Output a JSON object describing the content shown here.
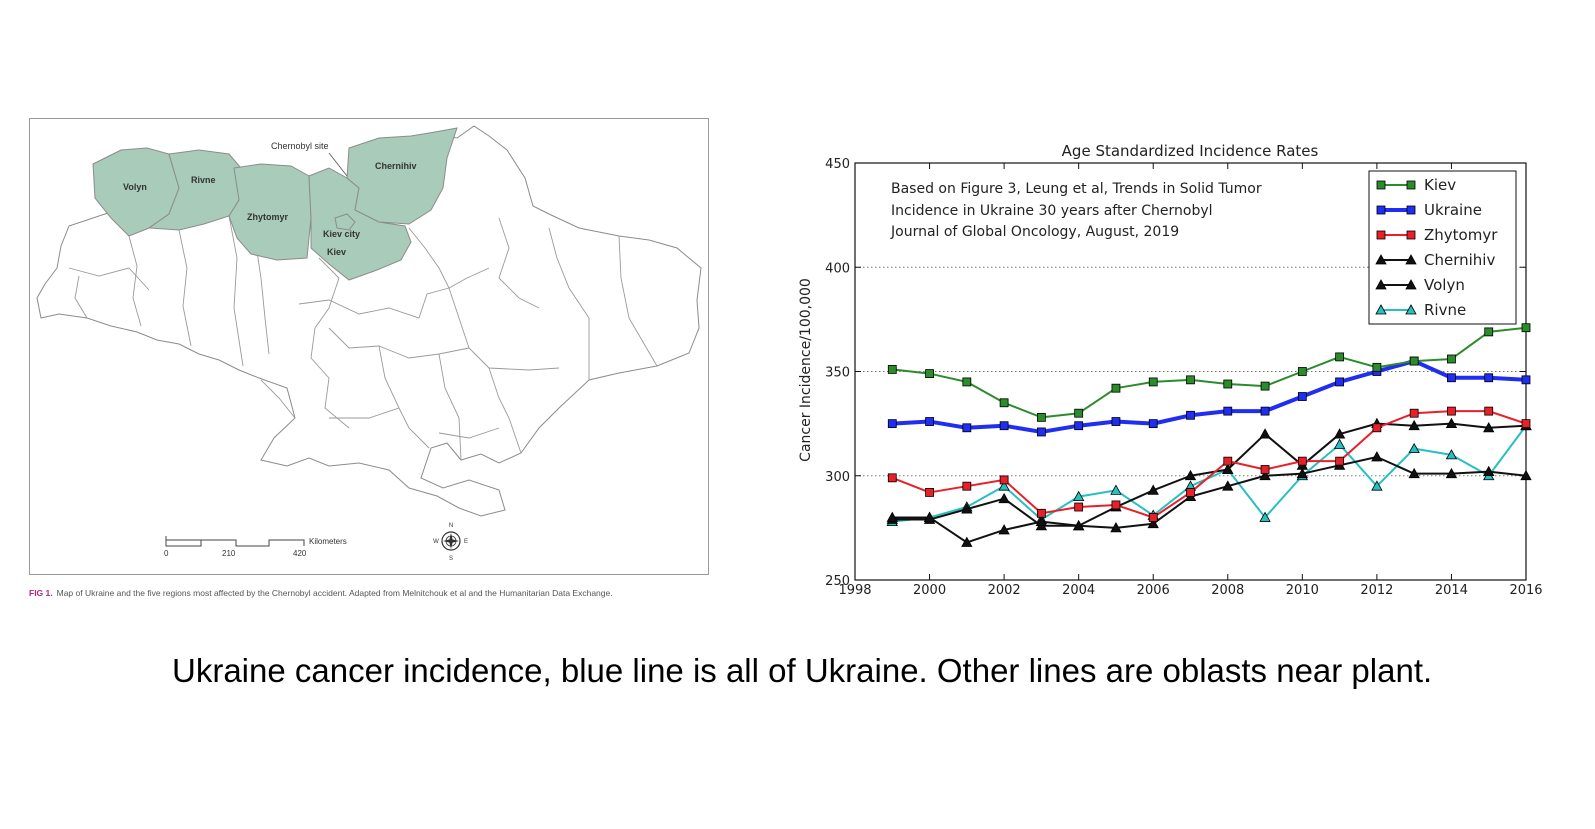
{
  "map": {
    "regions": {
      "volyn": "Volyn",
      "rivne": "Rivne",
      "zhytomyr": "Zhytomyr",
      "kiev_city": "Kiev city",
      "kiev": "Kiev",
      "chernihiv": "Chernihiv"
    },
    "site_label": "Chernobyl site",
    "scale": {
      "ticks": [
        "0",
        "210",
        "420"
      ],
      "unit": "Kilometers"
    },
    "compass": {
      "n": "N",
      "s": "S",
      "e": "E",
      "w": "W"
    },
    "figure_number": "FIG 1.",
    "figure_caption": "Map of Ukraine and the five regions most affected by the Chernobyl accident. Adapted from Melnitchouk et al and the Humanitarian Data Exchange.",
    "colors": {
      "affected": "#a9cbb9",
      "outline": "#8c8c8c"
    }
  },
  "chart_data": {
    "type": "line",
    "title": "Age Standardized Incidence Rates",
    "ylabel": "Cancer Incidence/100,000",
    "xlim": [
      1998,
      2016
    ],
    "ylim": [
      250,
      450
    ],
    "xticks": [
      1998,
      2000,
      2002,
      2004,
      2006,
      2008,
      2010,
      2012,
      2014,
      2016
    ],
    "yticks": [
      250,
      300,
      350,
      400,
      450
    ],
    "grid": "horizontal dotted",
    "legend_position": "top-right",
    "annotation": [
      "Based on Figure 3, Leung et al, Trends in Solid Tumor",
      "Incidence in Ukraine 30 years after Chernobyl",
      "Journal of Global Oncology, August, 2019"
    ],
    "x": [
      1999,
      2000,
      2001,
      2002,
      2003,
      2004,
      2005,
      2006,
      2007,
      2008,
      2009,
      2010,
      2011,
      2012,
      2013,
      2014,
      2015,
      2016
    ],
    "series": [
      {
        "name": "Kiev",
        "color": "#2a8c2a",
        "marker": "square",
        "values": [
          351,
          349,
          345,
          335,
          328,
          330,
          342,
          345,
          346,
          344,
          343,
          350,
          357,
          352,
          355,
          356,
          369,
          371
        ]
      },
      {
        "name": "Ukraine",
        "color": "#1f2ef0",
        "marker": "square",
        "values": [
          325,
          326,
          323,
          324,
          321,
          324,
          326,
          325,
          329,
          331,
          331,
          338,
          345,
          350,
          355,
          347,
          347,
          346
        ]
      },
      {
        "name": "Zhytomyr",
        "color": "#e8202a",
        "marker": "square",
        "values": [
          299,
          292,
          295,
          298,
          282,
          285,
          286,
          280,
          292,
          307,
          303,
          307,
          307,
          323,
          330,
          331,
          331,
          325
        ]
      },
      {
        "name": "Chernihiv",
        "color": "#111111",
        "marker": "triangle",
        "values": [
          280,
          280,
          268,
          274,
          278,
          276,
          275,
          277,
          290,
          295,
          300,
          301,
          305,
          309,
          301,
          301,
          302,
          300
        ]
      },
      {
        "name": "Volyn",
        "color": "#111111",
        "marker": "triangle",
        "values": [
          279,
          279,
          284,
          289,
          276,
          276,
          285,
          293,
          300,
          303,
          320,
          305,
          320,
          325,
          324,
          325,
          323,
          324
        ]
      },
      {
        "name": "Rivne",
        "color": "#27c0c0",
        "marker": "triangle",
        "values": [
          278,
          280,
          285,
          295,
          279,
          290,
          293,
          281,
          295,
          303,
          280,
          300,
          315,
          295,
          313,
          310,
          300,
          324
        ]
      }
    ]
  },
  "caption": "Ukraine cancer incidence, blue line is all of Ukraine. Other lines are oblasts near plant."
}
